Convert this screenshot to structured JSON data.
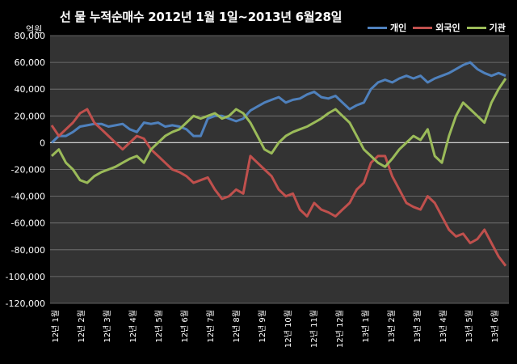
{
  "chart_data": {
    "type": "line",
    "title": "선 물 누적순매수 2012년 1월 1일~2013년 6월28일",
    "unit": "억원",
    "ylim": [
      -120000,
      80000
    ],
    "y_ticks": [
      "80,000",
      "60,000",
      "40,000",
      "20,000",
      "0",
      "-20,000",
      "-40,000",
      "-60,000",
      "-80,000",
      "-100,000",
      "-120,000"
    ],
    "y_tick_values": [
      80000,
      60000,
      40000,
      20000,
      0,
      -20000,
      -40000,
      -60000,
      -80000,
      -100000,
      -120000
    ],
    "x_ticks": [
      "12년 1월",
      "12년 2월",
      "12년 3월",
      "12년 4월",
      "12년 5월",
      "12년 6월",
      "12년 7월",
      "12년 8월",
      "12년 9월",
      "12년 10월",
      "12년 11월",
      "12년 12월",
      "13년 1월",
      "13년 2월",
      "13년 3월",
      "13년 4월",
      "13년 5월",
      "13년 6월"
    ],
    "background": "#333333",
    "grid": "horizontal",
    "legend_position": "top-right",
    "series": [
      {
        "name": "개인",
        "color": "#4F81BD",
        "values": [
          0,
          5000,
          5000,
          8000,
          12000,
          13000,
          14000,
          14000,
          12000,
          13000,
          14000,
          10000,
          8000,
          15000,
          14000,
          15000,
          12000,
          13000,
          12000,
          10000,
          5000,
          5000,
          18000,
          20000,
          20000,
          18000,
          16000,
          18000,
          24000,
          27000,
          30000,
          32000,
          34000,
          30000,
          32000,
          33000,
          36000,
          38000,
          34000,
          33000,
          35000,
          30000,
          25000,
          28000,
          30000,
          40000,
          45000,
          47000,
          45000,
          48000,
          50000,
          48000,
          50000,
          45000,
          48000,
          50000,
          52000,
          55000,
          58000,
          60000,
          55000,
          52000,
          50000,
          52000,
          50000
        ]
      },
      {
        "name": "외국인",
        "color": "#C0504D",
        "values": [
          13000,
          5000,
          10000,
          15000,
          22000,
          25000,
          15000,
          10000,
          5000,
          0,
          -5000,
          0,
          5000,
          3000,
          -5000,
          -10000,
          -15000,
          -20000,
          -22000,
          -25000,
          -30000,
          -28000,
          -26000,
          -35000,
          -42000,
          -40000,
          -35000,
          -38000,
          -10000,
          -15000,
          -20000,
          -25000,
          -35000,
          -40000,
          -38000,
          -50000,
          -55000,
          -45000,
          -50000,
          -52000,
          -55000,
          -50000,
          -45000,
          -35000,
          -30000,
          -15000,
          -10000,
          -10000,
          -25000,
          -35000,
          -45000,
          -48000,
          -50000,
          -40000,
          -45000,
          -55000,
          -65000,
          -70000,
          -68000,
          -75000,
          -72000,
          -65000,
          -75000,
          -85000,
          -92000
        ]
      },
      {
        "name": "기관",
        "color": "#9BBB59",
        "values": [
          -10000,
          -5000,
          -15000,
          -20000,
          -28000,
          -30000,
          -25000,
          -22000,
          -20000,
          -18000,
          -15000,
          -12000,
          -10000,
          -15000,
          -5000,
          0,
          5000,
          8000,
          10000,
          15000,
          20000,
          18000,
          20000,
          22000,
          18000,
          20000,
          25000,
          22000,
          15000,
          5000,
          -5000,
          -8000,
          0,
          5000,
          8000,
          10000,
          12000,
          15000,
          18000,
          22000,
          25000,
          20000,
          15000,
          5000,
          -5000,
          -10000,
          -15000,
          -18000,
          -12000,
          -5000,
          0,
          5000,
          2000,
          10000,
          -10000,
          -15000,
          5000,
          20000,
          30000,
          25000,
          20000,
          15000,
          30000,
          40000,
          48000
        ]
      }
    ]
  }
}
